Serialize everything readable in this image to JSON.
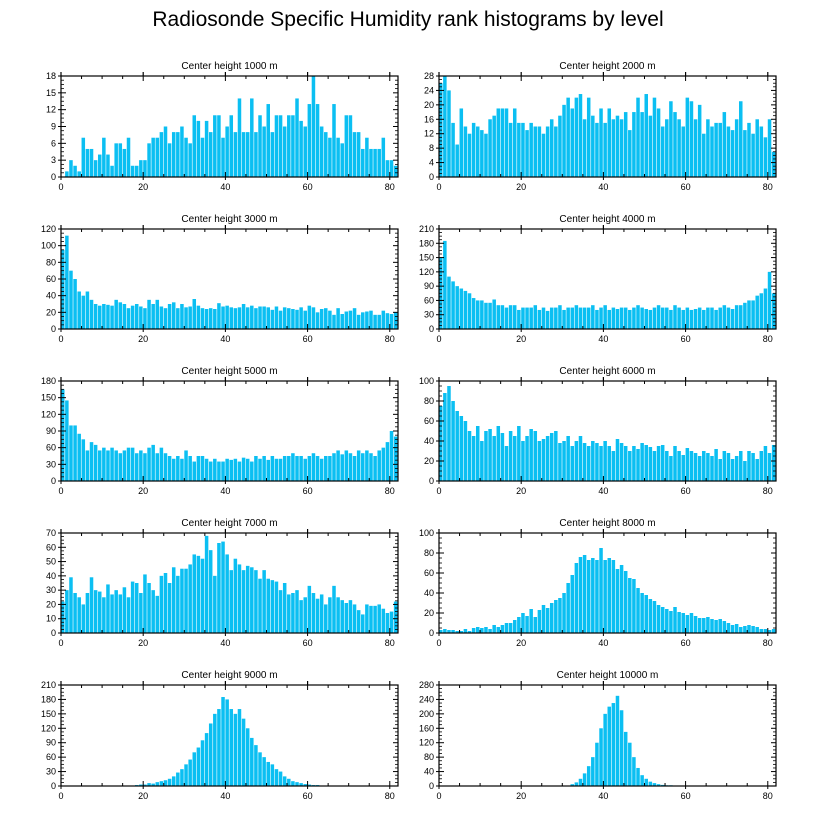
{
  "page_title": "Radiosonde Specific Humidity rank histograms by level",
  "bar_color": "#0bbff2",
  "chart_data": [
    {
      "type": "bar",
      "title": "Center height 1000 m",
      "xlim": [
        0,
        82
      ],
      "ylim": [
        0,
        18
      ],
      "yticks": [
        0,
        3,
        6,
        9,
        12,
        15,
        18
      ],
      "xticks": [
        0,
        20,
        40,
        60,
        80
      ],
      "values": [
        0,
        1,
        3,
        2,
        1,
        7,
        5,
        5,
        3,
        4,
        7,
        4,
        2,
        6,
        6,
        5,
        7,
        2,
        2,
        3,
        3,
        6,
        7,
        7,
        8,
        9,
        6,
        8,
        8,
        9,
        7,
        6,
        11,
        10,
        7,
        10,
        8,
        11,
        11,
        7,
        9,
        11,
        8,
        14,
        8,
        8,
        14,
        8,
        11,
        9,
        13,
        8,
        11,
        11,
        9,
        11,
        11,
        14,
        10,
        9,
        13,
        18,
        13,
        9,
        8,
        7,
        13,
        7,
        6,
        11,
        11,
        8,
        8,
        5,
        7,
        5,
        5,
        5,
        7,
        3,
        3,
        2
      ]
    },
    {
      "type": "bar",
      "title": "Center height 2000 m",
      "xlim": [
        0,
        82
      ],
      "ylim": [
        0,
        28
      ],
      "yticks": [
        0,
        4,
        8,
        12,
        16,
        20,
        24,
        28
      ],
      "xticks": [
        0,
        20,
        40,
        60,
        80
      ],
      "values": [
        26,
        28,
        24,
        15,
        9,
        19,
        14,
        12,
        15,
        14,
        13,
        12,
        16,
        17,
        19,
        19,
        19,
        15,
        19,
        15,
        15,
        13,
        15,
        14,
        14,
        12,
        14,
        16,
        14,
        17,
        20,
        22,
        19,
        22,
        23,
        16,
        22,
        17,
        15,
        19,
        15,
        19,
        16,
        17,
        16,
        18,
        13,
        18,
        22,
        18,
        23,
        17,
        22,
        19,
        14,
        16,
        21,
        18,
        16,
        14,
        22,
        21,
        16,
        20,
        12,
        16,
        14,
        15,
        15,
        18,
        14,
        13,
        16,
        21,
        13,
        15,
        12,
        16,
        14,
        11,
        16,
        7
      ]
    },
    {
      "type": "bar",
      "title": "Center height 3000 m",
      "xlim": [
        0,
        82
      ],
      "ylim": [
        0,
        120
      ],
      "yticks": [
        0,
        20,
        40,
        60,
        80,
        100,
        120
      ],
      "xticks": [
        0,
        20,
        40,
        60,
        80
      ],
      "values": [
        95,
        112,
        70,
        60,
        45,
        40,
        45,
        35,
        30,
        28,
        30,
        29,
        28,
        35,
        32,
        30,
        25,
        28,
        30,
        27,
        25,
        35,
        30,
        35,
        27,
        25,
        30,
        32,
        25,
        30,
        26,
        27,
        36,
        28,
        25,
        24,
        25,
        24,
        31,
        27,
        28,
        26,
        25,
        26,
        30,
        26,
        28,
        25,
        27,
        27,
        26,
        23,
        27,
        22,
        26,
        25,
        24,
        23,
        26,
        22,
        28,
        26,
        20,
        24,
        25,
        22,
        17,
        25,
        18,
        21,
        22,
        25,
        17,
        20,
        21,
        22,
        17,
        17,
        22,
        19,
        18,
        20
      ]
    },
    {
      "type": "bar",
      "title": "Center height 4000 m",
      "xlim": [
        0,
        82
      ],
      "ylim": [
        0,
        210
      ],
      "yticks": [
        0,
        30,
        60,
        90,
        120,
        150,
        180,
        210
      ],
      "xticks": [
        0,
        20,
        40,
        60,
        80
      ],
      "values": [
        150,
        185,
        110,
        100,
        90,
        85,
        80,
        75,
        65,
        60,
        60,
        55,
        55,
        62,
        50,
        50,
        45,
        50,
        50,
        40,
        45,
        45,
        45,
        50,
        40,
        45,
        38,
        45,
        45,
        50,
        40,
        45,
        45,
        50,
        45,
        45,
        45,
        50,
        40,
        45,
        50,
        40,
        45,
        42,
        45,
        45,
        40,
        45,
        50,
        45,
        42,
        40,
        45,
        50,
        45,
        45,
        40,
        50,
        45,
        40,
        45,
        40,
        42,
        45,
        40,
        45,
        45,
        40,
        45,
        50,
        45,
        42,
        50,
        50,
        55,
        60,
        60,
        70,
        75,
        85,
        120,
        75
      ]
    },
    {
      "type": "bar",
      "title": "Center height 5000 m",
      "xlim": [
        0,
        82
      ],
      "ylim": [
        0,
        180
      ],
      "yticks": [
        0,
        30,
        60,
        90,
        120,
        150,
        180
      ],
      "xticks": [
        0,
        20,
        40,
        60,
        80
      ],
      "values": [
        165,
        145,
        100,
        100,
        85,
        75,
        55,
        70,
        65,
        55,
        60,
        55,
        60,
        55,
        50,
        55,
        60,
        60,
        50,
        55,
        50,
        60,
        65,
        50,
        60,
        50,
        45,
        40,
        45,
        40,
        55,
        45,
        35,
        45,
        45,
        40,
        35,
        40,
        35,
        35,
        40,
        38,
        40,
        35,
        42,
        40,
        35,
        45,
        40,
        45,
        38,
        45,
        40,
        40,
        45,
        45,
        50,
        45,
        45,
        40,
        45,
        50,
        45,
        40,
        45,
        45,
        50,
        55,
        48,
        55,
        50,
        45,
        55,
        50,
        55,
        50,
        45,
        55,
        60,
        70,
        90,
        80
      ]
    },
    {
      "type": "bar",
      "title": "Center height 6000 m",
      "xlim": [
        0,
        82
      ],
      "ylim": [
        0,
        100
      ],
      "yticks": [
        0,
        20,
        40,
        60,
        80,
        100
      ],
      "xticks": [
        0,
        20,
        40,
        60,
        80
      ],
      "values": [
        75,
        88,
        95,
        80,
        70,
        65,
        60,
        50,
        45,
        55,
        40,
        50,
        52,
        45,
        55,
        48,
        35,
        50,
        45,
        55,
        40,
        45,
        52,
        50,
        40,
        42,
        45,
        48,
        50,
        38,
        40,
        45,
        35,
        40,
        45,
        38,
        35,
        40,
        38,
        35,
        40,
        35,
        30,
        42,
        38,
        35,
        30,
        35,
        32,
        38,
        36,
        34,
        30,
        35,
        36,
        30,
        25,
        35,
        30,
        26,
        33,
        30,
        28,
        25,
        30,
        28,
        25,
        32,
        22,
        30,
        28,
        22,
        25,
        30,
        20,
        30,
        28,
        22,
        30,
        35,
        28,
        36
      ]
    },
    {
      "type": "bar",
      "title": "Center height 7000 m",
      "xlim": [
        0,
        82
      ],
      "ylim": [
        0,
        70
      ],
      "yticks": [
        0,
        10,
        20,
        30,
        40,
        50,
        60,
        70
      ],
      "xticks": [
        0,
        20,
        40,
        60,
        80
      ],
      "values": [
        22,
        30,
        39,
        28,
        25,
        20,
        28,
        39,
        30,
        29,
        25,
        34,
        27,
        30,
        27,
        32,
        25,
        36,
        35,
        28,
        41,
        35,
        30,
        26,
        40,
        42,
        35,
        46,
        40,
        45,
        45,
        48,
        55,
        54,
        52,
        68,
        58,
        40,
        63,
        64,
        55,
        44,
        52,
        48,
        44,
        47,
        46,
        44,
        38,
        44,
        38,
        37,
        36,
        30,
        35,
        27,
        28,
        30,
        23,
        25,
        33,
        28,
        24,
        27,
        20,
        25,
        33,
        25,
        23,
        21,
        23,
        20,
        16,
        13,
        20,
        19,
        19,
        20,
        17,
        14,
        15,
        22
      ]
    },
    {
      "type": "bar",
      "title": "Center height 8000 m",
      "xlim": [
        0,
        82
      ],
      "ylim": [
        0,
        100
      ],
      "yticks": [
        0,
        20,
        40,
        60,
        80,
        100
      ],
      "xticks": [
        0,
        20,
        40,
        60,
        80
      ],
      "values": [
        3,
        4,
        3,
        3,
        2,
        2,
        4,
        2,
        5,
        6,
        5,
        6,
        4,
        8,
        6,
        8,
        10,
        10,
        13,
        16,
        20,
        17,
        24,
        16,
        23,
        28,
        25,
        30,
        33,
        35,
        40,
        50,
        58,
        70,
        76,
        78,
        73,
        75,
        73,
        85,
        73,
        75,
        73,
        64,
        68,
        62,
        55,
        54,
        45,
        40,
        38,
        34,
        32,
        28,
        26,
        24,
        22,
        26,
        21,
        20,
        18,
        20,
        17,
        15,
        15,
        16,
        14,
        13,
        14,
        12,
        10,
        8,
        9,
        6,
        7,
        8,
        7,
        6,
        4,
        4,
        3,
        4
      ]
    },
    {
      "type": "bar",
      "title": "Center height 9000 m",
      "xlim": [
        0,
        82
      ],
      "ylim": [
        0,
        210
      ],
      "yticks": [
        0,
        30,
        60,
        90,
        120,
        150,
        180,
        210
      ],
      "xticks": [
        0,
        20,
        40,
        60,
        80
      ],
      "values": [
        0,
        0,
        0,
        0,
        0,
        0,
        0,
        0,
        0,
        0,
        0,
        0,
        0,
        0,
        0,
        0,
        0,
        1,
        2,
        3,
        3,
        6,
        5,
        8,
        10,
        12,
        15,
        20,
        28,
        35,
        45,
        55,
        70,
        80,
        95,
        110,
        130,
        150,
        160,
        185,
        180,
        160,
        150,
        160,
        140,
        120,
        100,
        85,
        70,
        60,
        50,
        45,
        35,
        30,
        20,
        15,
        10,
        8,
        6,
        4,
        3,
        2,
        2,
        1,
        1,
        1,
        1,
        1,
        0,
        0,
        0,
        1,
        0,
        0,
        0,
        0,
        0,
        0,
        0,
        0,
        0,
        0
      ]
    },
    {
      "type": "bar",
      "title": "Center height 10000 m",
      "xlim": [
        0,
        82
      ],
      "ylim": [
        0,
        280
      ],
      "yticks": [
        0,
        40,
        80,
        120,
        160,
        200,
        240,
        280
      ],
      "xticks": [
        0,
        20,
        40,
        60,
        80
      ],
      "values": [
        0,
        0,
        0,
        0,
        0,
        0,
        0,
        0,
        0,
        0,
        0,
        0,
        0,
        0,
        0,
        0,
        0,
        0,
        0,
        0,
        0,
        0,
        0,
        0,
        0,
        0,
        0,
        0,
        0,
        0,
        0,
        0,
        5,
        10,
        20,
        35,
        55,
        80,
        120,
        160,
        200,
        220,
        230,
        250,
        210,
        150,
        120,
        80,
        50,
        30,
        20,
        12,
        8,
        5,
        3,
        2,
        2,
        1,
        1,
        1,
        0,
        0,
        0,
        0,
        0,
        0,
        0,
        0,
        0,
        0,
        0,
        0,
        0,
        0,
        0,
        0,
        0,
        0,
        0,
        0,
        0,
        0
      ]
    }
  ]
}
